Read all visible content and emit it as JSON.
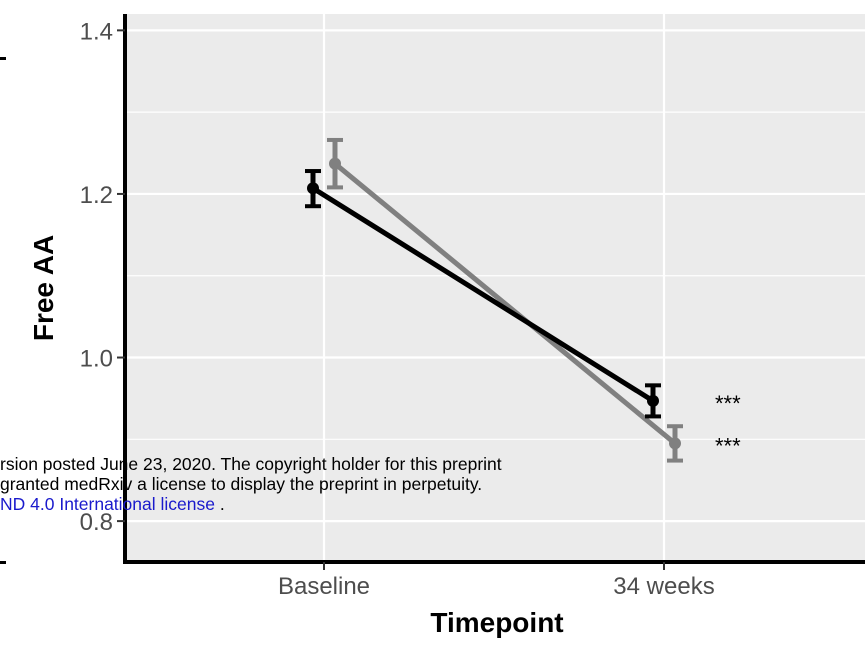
{
  "chart_data": {
    "type": "line",
    "xlabel": "Timepoint",
    "ylabel": "Free AA",
    "categories": [
      "Baseline",
      "34 weeks"
    ],
    "ylim": [
      0.75,
      1.42
    ],
    "yticks": [
      0.8,
      1.0,
      1.2,
      1.4
    ],
    "ytick_labels": [
      "0.8",
      "1.0",
      "1.2",
      "1.4"
    ],
    "grid": true,
    "series": [
      {
        "color": "#000000",
        "values": [
          1.207,
          0.947
        ],
        "error_low": [
          1.185,
          0.928
        ],
        "error_high": [
          1.228,
          0.966
        ]
      },
      {
        "color": "#808080",
        "values": [
          1.237,
          0.895
        ],
        "error_low": [
          1.208,
          0.874
        ],
        "error_high": [
          1.266,
          0.916
        ]
      }
    ],
    "annotations": [
      {
        "text": "***",
        "series": 0,
        "category": "34 weeks"
      },
      {
        "text": "***",
        "series": 1,
        "category": "34 weeks"
      }
    ]
  },
  "preprint_notice": {
    "line1": "rsion posted June 23, 2020. The copyright holder for this preprint",
    "line2": "granted medRxiv a license to display the preprint in perpetuity.",
    "line3_link": "ND 4.0 International license",
    "line3_tail": " ."
  },
  "colors": {
    "panel_background": "#ebebeb",
    "grid": "#ffffff",
    "link": "#1a1acc"
  }
}
